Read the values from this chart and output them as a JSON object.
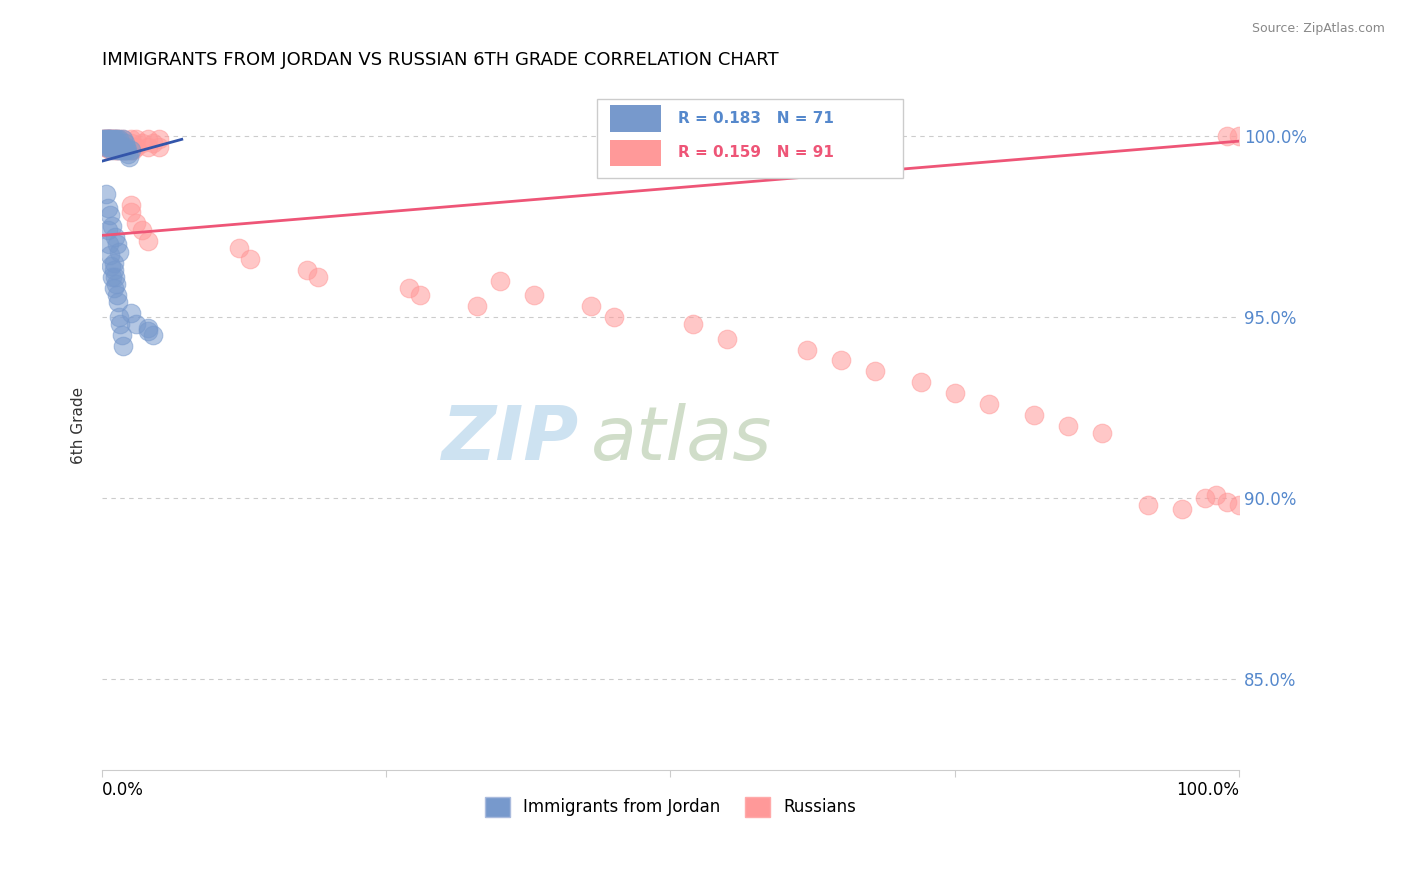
{
  "title": "IMMIGRANTS FROM JORDAN VS RUSSIAN 6TH GRADE CORRELATION CHART",
  "source": "Source: ZipAtlas.com",
  "ylabel": "6th Grade",
  "xlim": [
    0.0,
    1.0
  ],
  "ylim": [
    0.825,
    1.015
  ],
  "ytick_vals": [
    0.85,
    0.9,
    0.95,
    1.0
  ],
  "ytick_labels": [
    "85.0%",
    "90.0%",
    "95.0%",
    "100.0%"
  ],
  "blue_color": "#7799cc",
  "pink_color": "#ff9999",
  "blue_line_color": "#3355aa",
  "pink_line_color": "#ee5577",
  "legend_blue_R": "0.183",
  "legend_blue_N": "71",
  "legend_pink_R": "0.159",
  "legend_pink_N": "91",
  "blue_scatter_x": [
    0.001,
    0.001,
    0.002,
    0.002,
    0.003,
    0.003,
    0.003,
    0.004,
    0.004,
    0.005,
    0.005,
    0.005,
    0.006,
    0.006,
    0.007,
    0.007,
    0.008,
    0.008,
    0.009,
    0.009,
    0.01,
    0.01,
    0.011,
    0.011,
    0.012,
    0.012,
    0.013,
    0.013,
    0.014,
    0.015,
    0.015,
    0.016,
    0.017,
    0.018,
    0.018,
    0.019,
    0.02,
    0.02,
    0.021,
    0.022,
    0.023,
    0.024,
    0.025,
    0.003,
    0.005,
    0.007,
    0.009,
    0.011,
    0.013,
    0.015,
    0.01,
    0.01,
    0.011,
    0.012,
    0.013,
    0.014,
    0.015,
    0.016,
    0.017,
    0.018,
    0.005,
    0.006,
    0.007,
    0.008,
    0.009,
    0.01,
    0.025,
    0.03,
    0.04,
    0.04,
    0.045
  ],
  "blue_scatter_y": [
    0.999,
    0.998,
    0.999,
    0.998,
    0.999,
    0.998,
    0.997,
    0.999,
    0.998,
    0.999,
    0.998,
    0.997,
    0.999,
    0.998,
    0.999,
    0.997,
    0.999,
    0.998,
    0.997,
    0.996,
    0.999,
    0.998,
    0.999,
    0.997,
    0.998,
    0.997,
    0.999,
    0.996,
    0.997,
    0.999,
    0.996,
    0.997,
    0.996,
    0.999,
    0.997,
    0.996,
    0.998,
    0.996,
    0.997,
    0.996,
    0.995,
    0.994,
    0.996,
    0.984,
    0.98,
    0.978,
    0.975,
    0.972,
    0.97,
    0.968,
    0.965,
    0.963,
    0.961,
    0.959,
    0.956,
    0.954,
    0.95,
    0.948,
    0.945,
    0.942,
    0.974,
    0.97,
    0.967,
    0.964,
    0.961,
    0.958,
    0.951,
    0.948,
    0.947,
    0.946,
    0.945
  ],
  "pink_scatter_x": [
    0.001,
    0.001,
    0.002,
    0.002,
    0.002,
    0.003,
    0.003,
    0.003,
    0.004,
    0.004,
    0.004,
    0.005,
    0.005,
    0.005,
    0.006,
    0.006,
    0.007,
    0.007,
    0.007,
    0.008,
    0.008,
    0.009,
    0.009,
    0.01,
    0.01,
    0.011,
    0.011,
    0.012,
    0.012,
    0.013,
    0.013,
    0.014,
    0.015,
    0.015,
    0.016,
    0.017,
    0.018,
    0.018,
    0.019,
    0.02,
    0.02,
    0.021,
    0.022,
    0.025,
    0.025,
    0.025,
    0.026,
    0.027,
    0.03,
    0.03,
    0.035,
    0.04,
    0.04,
    0.045,
    0.05,
    0.05,
    0.025,
    0.025,
    0.03,
    0.035,
    0.04,
    0.12,
    0.13,
    0.18,
    0.19,
    0.27,
    0.28,
    0.33,
    0.35,
    0.38,
    0.43,
    0.45,
    0.52,
    0.55,
    0.62,
    0.65,
    0.68,
    0.72,
    0.75,
    0.78,
    0.82,
    0.85,
    0.88,
    0.92,
    0.95,
    0.97,
    0.98,
    0.99,
    1.0,
    0.99,
    1.0
  ],
  "pink_scatter_y": [
    0.999,
    0.998,
    0.999,
    0.998,
    0.997,
    0.999,
    0.998,
    0.997,
    0.999,
    0.998,
    0.997,
    0.999,
    0.998,
    0.997,
    0.999,
    0.997,
    0.999,
    0.998,
    0.996,
    0.999,
    0.997,
    0.999,
    0.997,
    0.999,
    0.997,
    0.999,
    0.996,
    0.998,
    0.997,
    0.999,
    0.996,
    0.997,
    0.999,
    0.997,
    0.996,
    0.997,
    0.999,
    0.996,
    0.997,
    0.998,
    0.996,
    0.997,
    0.996,
    0.999,
    0.998,
    0.996,
    0.997,
    0.996,
    0.999,
    0.997,
    0.998,
    0.999,
    0.997,
    0.998,
    0.999,
    0.997,
    0.981,
    0.979,
    0.976,
    0.974,
    0.971,
    0.969,
    0.966,
    0.963,
    0.961,
    0.958,
    0.956,
    0.953,
    0.96,
    0.956,
    0.953,
    0.95,
    0.948,
    0.944,
    0.941,
    0.938,
    0.935,
    0.932,
    0.929,
    0.926,
    0.923,
    0.92,
    0.918,
    0.898,
    0.897,
    0.9,
    0.901,
    0.899,
    0.898,
    1.0,
    1.0
  ],
  "blue_trend_x": [
    0.0,
    0.07
  ],
  "blue_trend_y": [
    0.993,
    0.999
  ],
  "pink_trend_x": [
    0.0,
    1.0
  ],
  "pink_trend_y": [
    0.9725,
    0.9985
  ]
}
